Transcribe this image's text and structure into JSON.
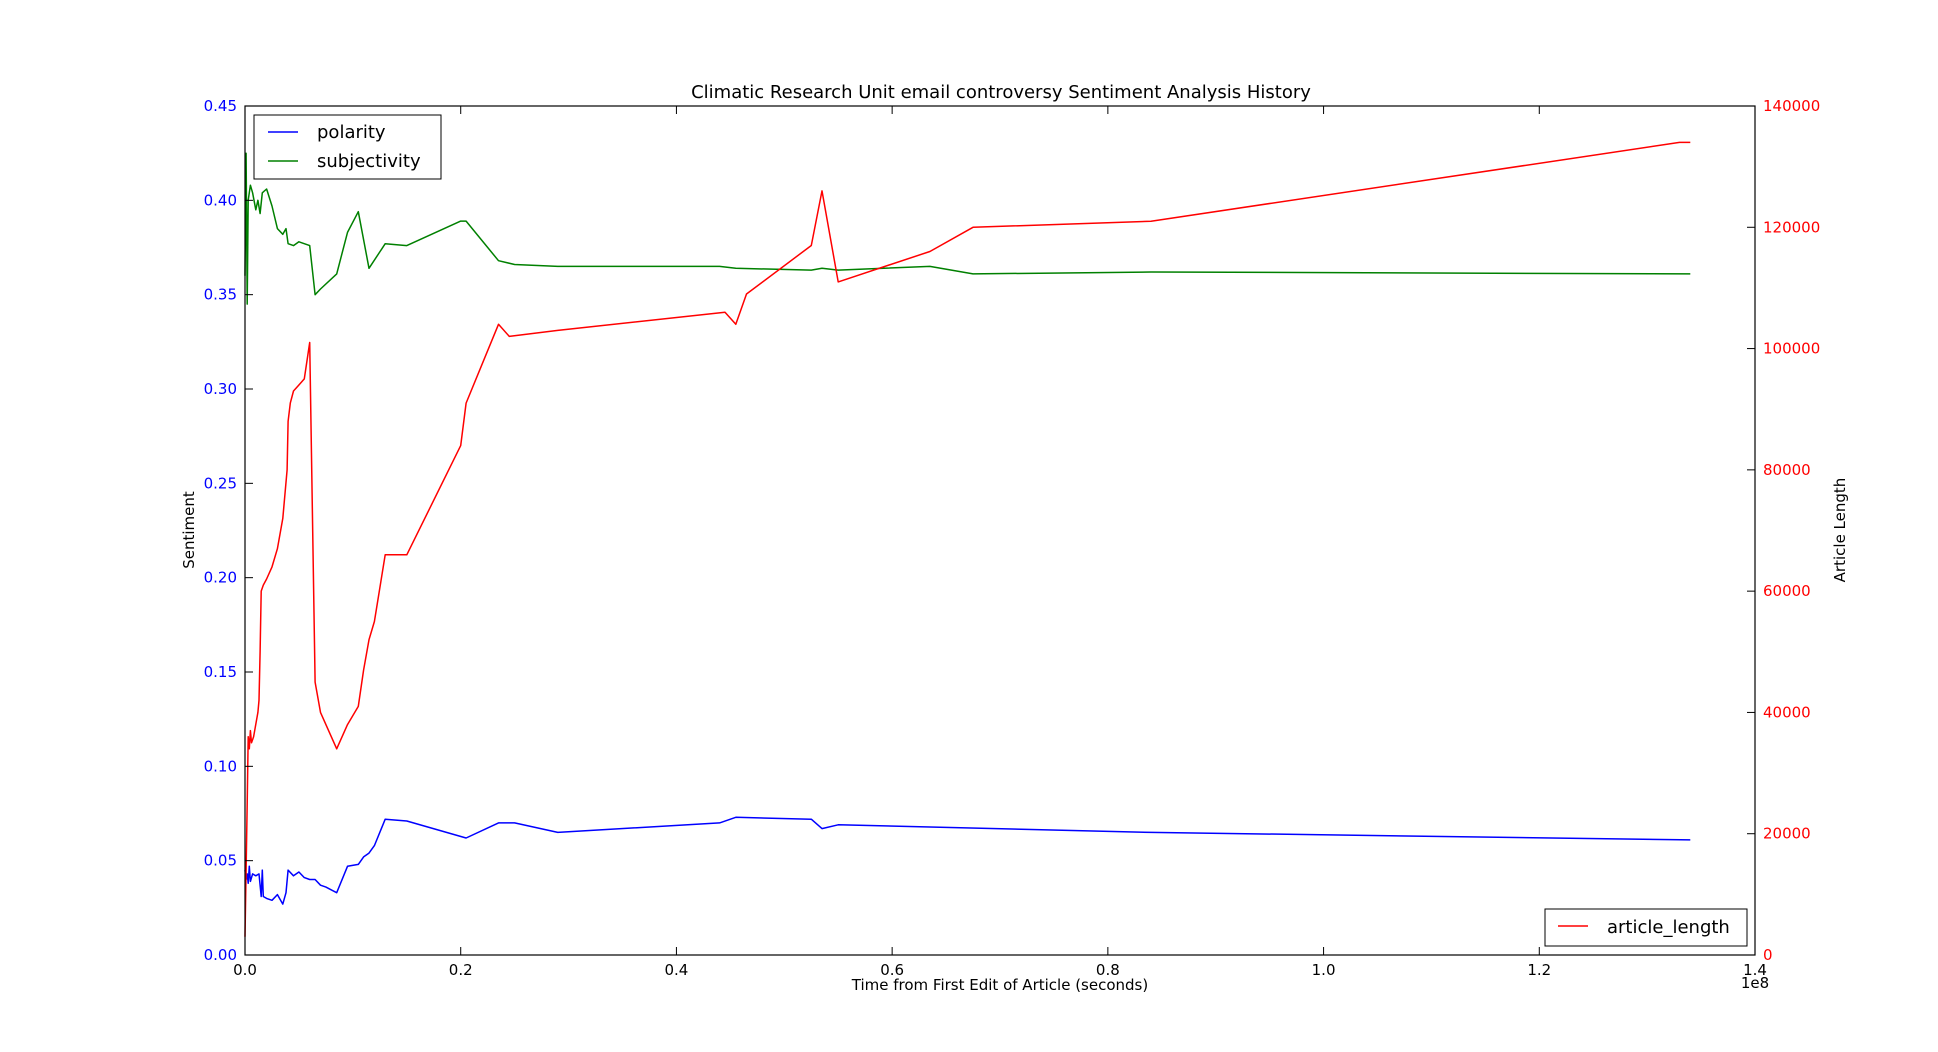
{
  "chart_data": {
    "type": "line",
    "title": "Climatic Research Unit email controversy Sentiment Analysis History",
    "xlabel": "Time from First Edit of Article (seconds)",
    "x_offset_label": "1e8",
    "ylabel_left": "Sentiment",
    "ylabel_right": "Article Length",
    "xlim": [
      0,
      1.4
    ],
    "ylim_left": [
      0,
      0.45
    ],
    "ylim_right": [
      0,
      140000
    ],
    "x_ticks": [
      "0.0",
      "0.2",
      "0.4",
      "0.6",
      "0.8",
      "1.0",
      "1.2",
      "1.4"
    ],
    "y_left_ticks": [
      "0.00",
      "0.05",
      "0.10",
      "0.15",
      "0.20",
      "0.25",
      "0.30",
      "0.35",
      "0.40",
      "0.45"
    ],
    "y_right_ticks": [
      "0",
      "20000",
      "40000",
      "60000",
      "80000",
      "100000",
      "120000",
      "140000"
    ],
    "grid": false,
    "legend_left": {
      "placement": "top-left",
      "entries": [
        "polarity",
        "subjectivity"
      ]
    },
    "legend_right": {
      "placement": "bottom-right",
      "entries": [
        "article_length"
      ]
    },
    "series": [
      {
        "name": "polarity",
        "axis": "left",
        "color": "#0000ff",
        "x": [
          0,
          0.001,
          0.002,
          0.003,
          0.004,
          0.005,
          0.007,
          0.01,
          0.013,
          0.015,
          0.016,
          0.017,
          0.02,
          0.025,
          0.03,
          0.035,
          0.038,
          0.04,
          0.045,
          0.05,
          0.055,
          0.06,
          0.065,
          0.07,
          0.075,
          0.085,
          0.095,
          0.105,
          0.11,
          0.115,
          0.12,
          0.13,
          0.15,
          0.205,
          0.235,
          0.25,
          0.29,
          0.44,
          0.455,
          0.525,
          0.535,
          0.55,
          0.84,
          1.34
        ],
        "y": [
          0.045,
          0.04,
          0.043,
          0.038,
          0.047,
          0.039,
          0.043,
          0.042,
          0.043,
          0.031,
          0.045,
          0.031,
          0.03,
          0.029,
          0.032,
          0.027,
          0.033,
          0.045,
          0.042,
          0.044,
          0.041,
          0.04,
          0.04,
          0.037,
          0.036,
          0.033,
          0.047,
          0.048,
          0.052,
          0.054,
          0.058,
          0.072,
          0.071,
          0.062,
          0.07,
          0.07,
          0.065,
          0.07,
          0.073,
          0.072,
          0.067,
          0.069,
          0.065,
          0.061
        ]
      },
      {
        "name": "subjectivity",
        "axis": "left",
        "color": "#008000",
        "x": [
          0,
          0.001,
          0.002,
          0.003,
          0.005,
          0.007,
          0.01,
          0.012,
          0.014,
          0.016,
          0.02,
          0.025,
          0.03,
          0.035,
          0.038,
          0.04,
          0.045,
          0.05,
          0.055,
          0.06,
          0.065,
          0.07,
          0.085,
          0.095,
          0.105,
          0.115,
          0.13,
          0.15,
          0.2,
          0.205,
          0.235,
          0.25,
          0.29,
          0.44,
          0.455,
          0.525,
          0.535,
          0.55,
          0.635,
          0.675,
          0.84,
          1.34
        ],
        "y": [
          0.36,
          0.425,
          0.345,
          0.4,
          0.408,
          0.404,
          0.395,
          0.4,
          0.393,
          0.404,
          0.406,
          0.397,
          0.385,
          0.382,
          0.385,
          0.377,
          0.376,
          0.378,
          0.377,
          0.376,
          0.35,
          0.353,
          0.361,
          0.383,
          0.394,
          0.364,
          0.377,
          0.376,
          0.389,
          0.389,
          0.368,
          0.366,
          0.365,
          0.365,
          0.364,
          0.363,
          0.364,
          0.363,
          0.365,
          0.361,
          0.362,
          0.361
        ]
      },
      {
        "name": "article_length",
        "axis": "right",
        "color": "#ff0000",
        "x": [
          0,
          0.002,
          0.003,
          0.004,
          0.005,
          0.006,
          0.008,
          0.012,
          0.013,
          0.014,
          0.015,
          0.017,
          0.02,
          0.025,
          0.03,
          0.035,
          0.039,
          0.04,
          0.042,
          0.045,
          0.05,
          0.055,
          0.06,
          0.065,
          0.07,
          0.085,
          0.095,
          0.105,
          0.11,
          0.115,
          0.12,
          0.13,
          0.15,
          0.2,
          0.205,
          0.235,
          0.245,
          0.29,
          0.445,
          0.455,
          0.465,
          0.525,
          0.535,
          0.55,
          0.635,
          0.675,
          0.84,
          1.33,
          1.34
        ],
        "y": [
          3000,
          25000,
          36000,
          34000,
          37000,
          35000,
          36000,
          40000,
          42000,
          50000,
          60000,
          61000,
          62000,
          64000,
          67000,
          72000,
          80000,
          88000,
          91000,
          93000,
          94000,
          95000,
          101000,
          45000,
          40000,
          34000,
          38000,
          41000,
          47000,
          52000,
          55000,
          66000,
          66000,
          84000,
          91000,
          104000,
          102000,
          103000,
          106000,
          104000,
          109000,
          117000,
          126000,
          111000,
          116000,
          120000,
          121000,
          134000,
          134000
        ]
      }
    ]
  }
}
